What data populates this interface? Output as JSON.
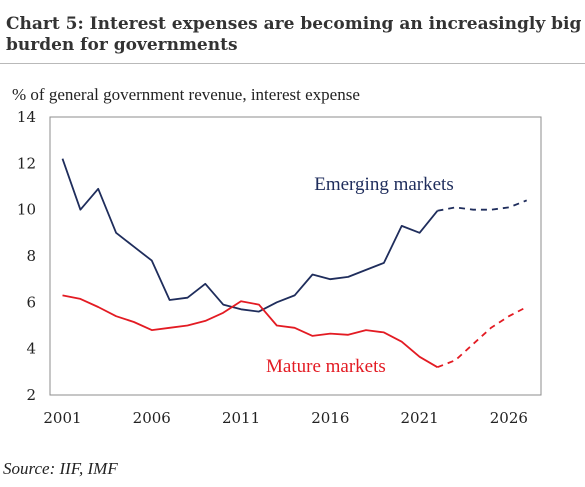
{
  "title_line_1": "Chart 5: Interest expenses are becoming an increasingly big",
  "title_line_2": "burden for governments",
  "source": "Source: IIF, IMF",
  "chart_data": {
    "type": "line",
    "title": "Chart 5: Interest expenses are becoming an increasingly big burden for governments",
    "ylabel": "% of general government revenue, interest expense",
    "xlabel": "",
    "xlim": [
      2000.3,
      2027.8
    ],
    "ylim": [
      2,
      14
    ],
    "xticks": [
      2001,
      2006,
      2011,
      2016,
      2021,
      2026
    ],
    "yticks": [
      2,
      4,
      6,
      8,
      10,
      12,
      14
    ],
    "grid": false,
    "legend": "none (series labeled directly on chart)",
    "series": [
      {
        "name": "Emerging markets",
        "color": "#1f2d5c",
        "x": [
          2001,
          2002,
          2003,
          2004,
          2005,
          2006,
          2007,
          2008,
          2009,
          2010,
          2011,
          2012,
          2013,
          2014,
          2015,
          2016,
          2017,
          2018,
          2019,
          2020,
          2021,
          2022,
          2023,
          2024,
          2025,
          2026,
          2027
        ],
        "values": [
          12.2,
          10.0,
          10.9,
          9.0,
          8.4,
          7.8,
          6.1,
          6.2,
          6.8,
          5.9,
          5.7,
          5.6,
          6.0,
          6.3,
          7.2,
          7.0,
          7.1,
          7.4,
          7.7,
          9.3,
          9.0,
          9.95,
          10.1,
          10.0,
          10.0,
          10.1,
          10.4
        ],
        "projection_from": 2022,
        "label_x": 2015.1,
        "label_y": 10.85
      },
      {
        "name": "Mature markets",
        "color": "#e31b23",
        "x": [
          2001,
          2002,
          2003,
          2004,
          2005,
          2006,
          2007,
          2008,
          2009,
          2010,
          2011,
          2012,
          2013,
          2014,
          2015,
          2016,
          2017,
          2018,
          2019,
          2020,
          2021,
          2022,
          2023,
          2024,
          2025,
          2026,
          2027
        ],
        "values": [
          6.3,
          6.15,
          5.8,
          5.4,
          5.15,
          4.8,
          4.9,
          5.0,
          5.2,
          5.55,
          6.05,
          5.9,
          5.0,
          4.9,
          4.55,
          4.65,
          4.6,
          4.8,
          4.7,
          4.3,
          3.65,
          3.2,
          3.5,
          4.2,
          4.9,
          5.4,
          5.8
        ],
        "projection_from": 2022,
        "label_x": 2012.4,
        "label_y": 3.0
      }
    ]
  }
}
